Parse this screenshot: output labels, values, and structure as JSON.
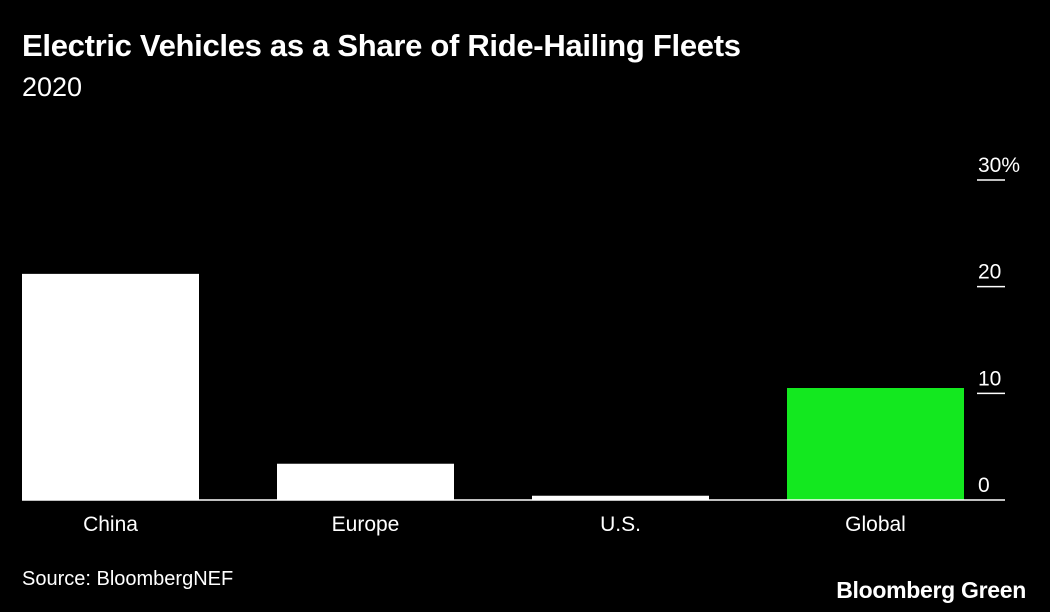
{
  "header": {
    "title": "Electric Vehicles as a Share of Ride-Hailing Fleets",
    "subtitle": "2020"
  },
  "footer": {
    "source": "Source: BloombergNEF",
    "brand": "Bloomberg Green"
  },
  "colors": {
    "background": "#000000",
    "bar_default": "#ffffff",
    "bar_highlight": "#13e81f",
    "text": "#ffffff"
  },
  "chart_data": {
    "type": "bar",
    "title": "Electric Vehicles as a Share of Ride-Hailing Fleets",
    "subtitle": "2020",
    "categories": [
      "China",
      "Europe",
      "U.S.",
      "Global"
    ],
    "values": [
      21.2,
      3.4,
      0.4,
      10.5
    ],
    "highlight": [
      "Global"
    ],
    "xlabel": "",
    "ylabel": "",
    "ylim": [
      0,
      30
    ],
    "yticks": [
      0,
      10,
      20,
      30
    ],
    "ytick_labels": [
      "0",
      "10",
      "20",
      "30%"
    ],
    "y_axis_side": "right",
    "grid": false,
    "legend": "none"
  }
}
